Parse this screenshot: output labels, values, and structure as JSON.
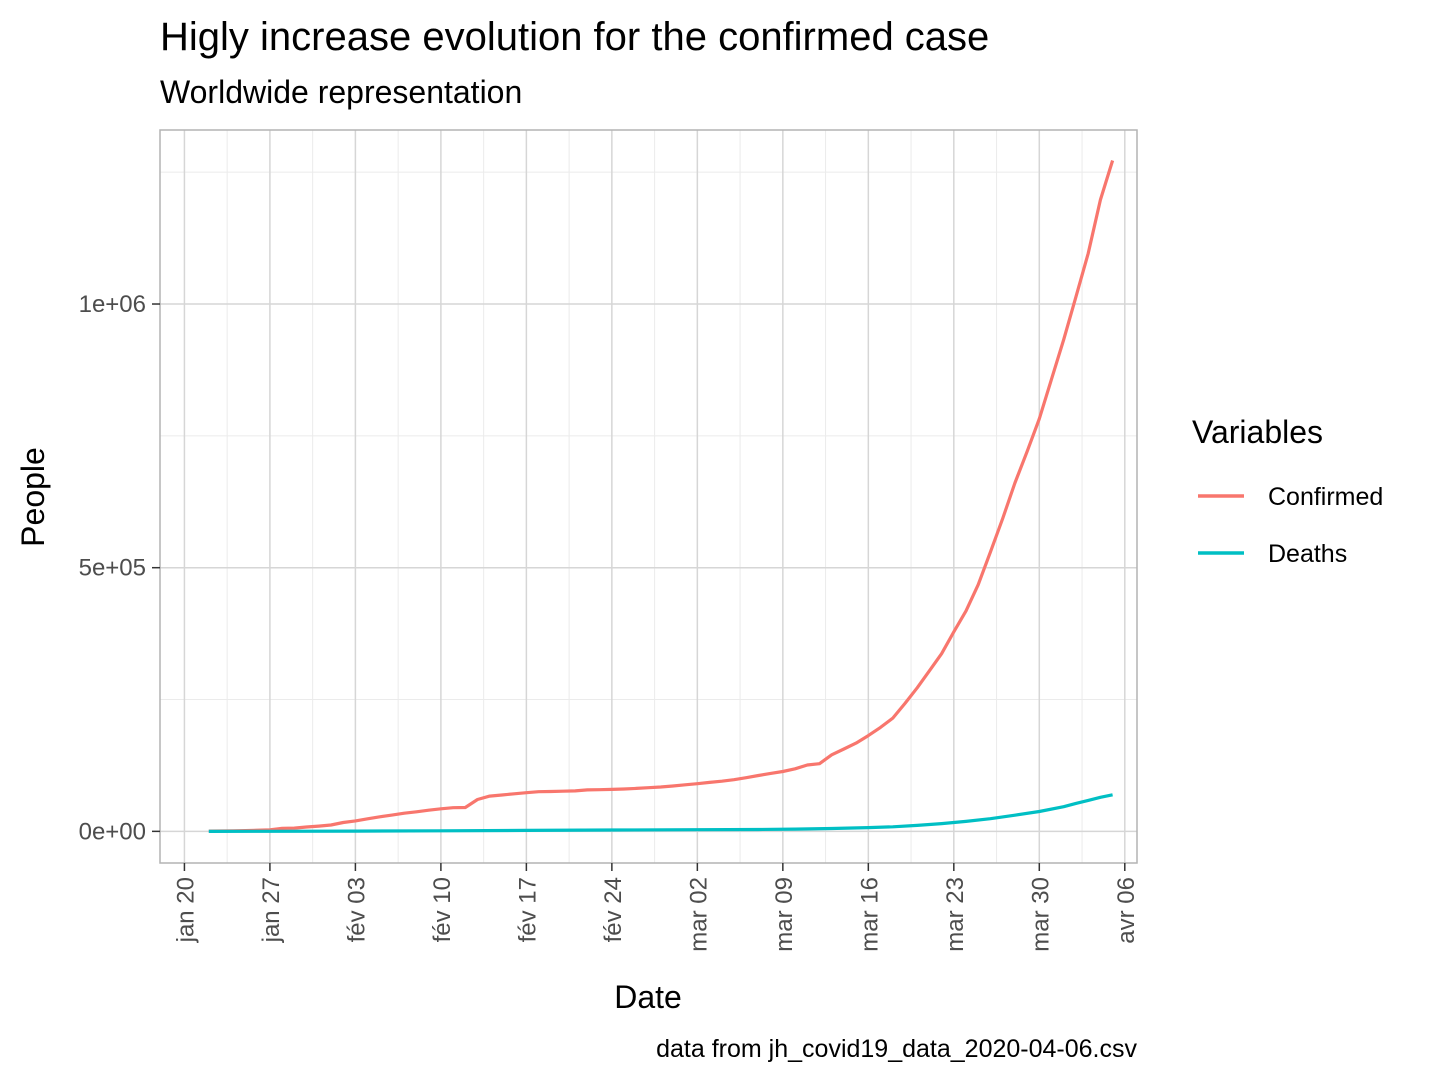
{
  "chart_data": {
    "type": "line",
    "title": "Higly increase evolution for the confirmed case",
    "subtitle": "Worldwide representation",
    "xlabel": "Date",
    "ylabel": "People",
    "caption": "data from jh_covid19_data_2020-04-06.csv",
    "legend": {
      "title": "Variables",
      "placement": "right"
    },
    "grid": true,
    "xlim": [
      "2020-01-18",
      "2020-04-07"
    ],
    "ylim": [
      -60000,
      1330000
    ],
    "x_ticks": [
      {
        "date": "2020-01-20",
        "label": "jan 20"
      },
      {
        "date": "2020-01-27",
        "label": "jan 27"
      },
      {
        "date": "2020-02-03",
        "label": "fév 03"
      },
      {
        "date": "2020-02-10",
        "label": "fév 10"
      },
      {
        "date": "2020-02-17",
        "label": "fév 17"
      },
      {
        "date": "2020-02-24",
        "label": "fév 24"
      },
      {
        "date": "2020-03-02",
        "label": "mar 02"
      },
      {
        "date": "2020-03-09",
        "label": "mar 09"
      },
      {
        "date": "2020-03-16",
        "label": "mar 16"
      },
      {
        "date": "2020-03-23",
        "label": "mar 23"
      },
      {
        "date": "2020-03-30",
        "label": "mar 30"
      },
      {
        "date": "2020-04-06",
        "label": "avr 06"
      }
    ],
    "y_ticks": [
      {
        "value": 0,
        "label": "0e+00"
      },
      {
        "value": 500000,
        "label": "5e+05"
      },
      {
        "value": 1000000,
        "label": "1e+06"
      }
    ],
    "series": [
      {
        "name": "Confirmed",
        "color": "#F8766D",
        "points": [
          [
            "2020-01-22",
            555
          ],
          [
            "2020-01-23",
            654
          ],
          [
            "2020-01-24",
            941
          ],
          [
            "2020-01-25",
            1434
          ],
          [
            "2020-01-26",
            2118
          ],
          [
            "2020-01-27",
            2927
          ],
          [
            "2020-01-28",
            5578
          ],
          [
            "2020-01-29",
            6166
          ],
          [
            "2020-01-30",
            8234
          ],
          [
            "2020-01-31",
            9927
          ],
          [
            "2020-02-01",
            12038
          ],
          [
            "2020-02-02",
            16787
          ],
          [
            "2020-02-03",
            19881
          ],
          [
            "2020-02-04",
            23892
          ],
          [
            "2020-02-05",
            27635
          ],
          [
            "2020-02-06",
            30794
          ],
          [
            "2020-02-07",
            34391
          ],
          [
            "2020-02-08",
            37120
          ],
          [
            "2020-02-09",
            40150
          ],
          [
            "2020-02-10",
            42762
          ],
          [
            "2020-02-11",
            44802
          ],
          [
            "2020-02-12",
            45221
          ],
          [
            "2020-02-13",
            60368
          ],
          [
            "2020-02-14",
            66885
          ],
          [
            "2020-02-15",
            69030
          ],
          [
            "2020-02-16",
            71224
          ],
          [
            "2020-02-17",
            73258
          ],
          [
            "2020-02-18",
            75136
          ],
          [
            "2020-02-19",
            75639
          ],
          [
            "2020-02-20",
            76197
          ],
          [
            "2020-02-21",
            76819
          ],
          [
            "2020-02-22",
            78572
          ],
          [
            "2020-02-23",
            78958
          ],
          [
            "2020-02-24",
            79561
          ],
          [
            "2020-02-25",
            80406
          ],
          [
            "2020-02-26",
            81388
          ],
          [
            "2020-02-27",
            82746
          ],
          [
            "2020-02-28",
            84112
          ],
          [
            "2020-02-29",
            86011
          ],
          [
            "2020-03-01",
            88369
          ],
          [
            "2020-03-02",
            90306
          ],
          [
            "2020-03-03",
            92840
          ],
          [
            "2020-03-04",
            95120
          ],
          [
            "2020-03-05",
            97886
          ],
          [
            "2020-03-06",
            101801
          ],
          [
            "2020-03-07",
            105847
          ],
          [
            "2020-03-08",
            109821
          ],
          [
            "2020-03-09",
            113590
          ],
          [
            "2020-03-10",
            118620
          ],
          [
            "2020-03-11",
            125875
          ],
          [
            "2020-03-12",
            128352
          ],
          [
            "2020-03-13",
            145205
          ],
          [
            "2020-03-14",
            156101
          ],
          [
            "2020-03-15",
            167454
          ],
          [
            "2020-03-16",
            181574
          ],
          [
            "2020-03-17",
            197102
          ],
          [
            "2020-03-18",
            214821
          ],
          [
            "2020-03-19",
            242570
          ],
          [
            "2020-03-20",
            272208
          ],
          [
            "2020-03-21",
            304507
          ],
          [
            "2020-03-22",
            336953
          ],
          [
            "2020-03-23",
            378231
          ],
          [
            "2020-03-24",
            418041
          ],
          [
            "2020-03-25",
            467653
          ],
          [
            "2020-03-26",
            529591
          ],
          [
            "2020-03-27",
            593291
          ],
          [
            "2020-03-28",
            660693
          ],
          [
            "2020-03-29",
            720140
          ],
          [
            "2020-03-30",
            782389
          ],
          [
            "2020-03-31",
            857487
          ],
          [
            "2020-04-01",
            932605
          ],
          [
            "2020-04-02",
            1013466
          ],
          [
            "2020-04-03",
            1095917
          ],
          [
            "2020-04-04",
            1197405
          ],
          [
            "2020-04-05",
            1272115
          ]
        ]
      },
      {
        "name": "Deaths",
        "color": "#00BFC4",
        "points": [
          [
            "2020-01-22",
            17
          ],
          [
            "2020-01-27",
            82
          ],
          [
            "2020-02-03",
            426
          ],
          [
            "2020-02-10",
            1013
          ],
          [
            "2020-02-17",
            1868
          ],
          [
            "2020-02-24",
            2629
          ],
          [
            "2020-03-02",
            3085
          ],
          [
            "2020-03-07",
            3558
          ],
          [
            "2020-03-10",
            4262
          ],
          [
            "2020-03-13",
            5404
          ],
          [
            "2020-03-16",
            7126
          ],
          [
            "2020-03-18",
            8733
          ],
          [
            "2020-03-20",
            11299
          ],
          [
            "2020-03-22",
            14623
          ],
          [
            "2020-03-24",
            18895
          ],
          [
            "2020-03-26",
            23970
          ],
          [
            "2020-03-28",
            30652
          ],
          [
            "2020-03-30",
            37582
          ],
          [
            "2020-04-01",
            46809
          ],
          [
            "2020-04-02",
            52983
          ],
          [
            "2020-04-03",
            58787
          ],
          [
            "2020-04-04",
            64606
          ],
          [
            "2020-04-05",
            69374
          ]
        ]
      }
    ]
  }
}
